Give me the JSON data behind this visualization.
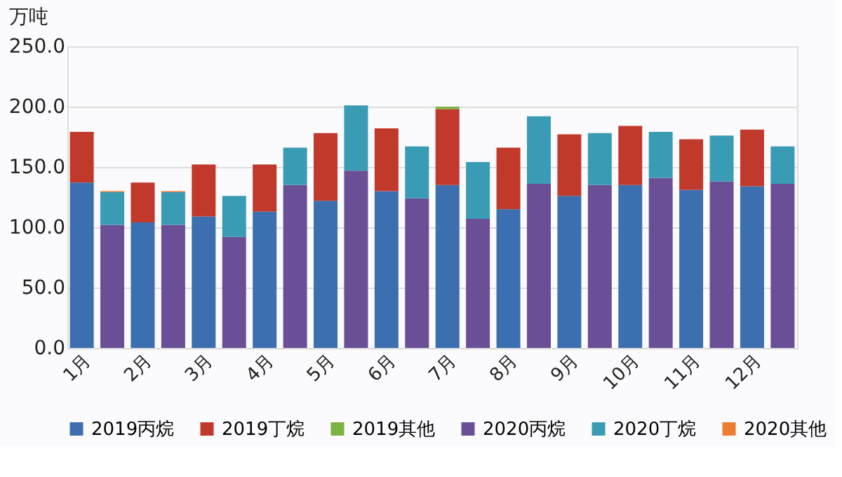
{
  "chart_data": {
    "type": "bar",
    "stacked": true,
    "ylabel": "万吨",
    "categories": [
      "1月",
      null,
      "2月",
      null,
      "3月",
      null,
      "4月",
      null,
      "5月",
      null,
      "6月",
      null,
      "7月",
      null,
      "8月",
      null,
      "9月",
      null,
      "10月",
      null,
      "11月",
      null,
      "12月",
      null
    ],
    "ylim": [
      0,
      250
    ],
    "yticks": [
      {
        "value": 0,
        "label": "0.0"
      },
      {
        "value": 50,
        "label": "50.0"
      },
      {
        "value": 100,
        "label": "100.0"
      },
      {
        "value": 150,
        "label": "150.0"
      },
      {
        "value": 200,
        "label": "200.0"
      },
      {
        "value": 250,
        "label": "250.0"
      }
    ],
    "grid": "y",
    "legend": "bottom",
    "series": [
      {
        "name": "2019丙烷",
        "color": "#3b6fb0",
        "values": [
          137,
          null,
          104,
          null,
          109,
          null,
          113,
          null,
          122,
          null,
          130,
          null,
          135,
          null,
          115,
          null,
          126,
          null,
          135,
          null,
          131,
          null,
          134,
          null
        ]
      },
      {
        "name": "2019丁烷",
        "color": "#c0392b",
        "values": [
          42,
          null,
          33,
          null,
          43,
          null,
          39,
          null,
          56,
          null,
          52,
          null,
          63,
          null,
          51,
          null,
          51,
          null,
          49,
          null,
          42,
          null,
          47,
          null
        ]
      },
      {
        "name": "2019其他",
        "color": "#7cb342",
        "values": [
          null,
          null,
          null,
          null,
          null,
          null,
          null,
          null,
          null,
          null,
          null,
          null,
          2,
          null,
          null,
          null,
          null,
          null,
          null,
          null,
          null,
          null,
          null,
          null
        ]
      },
      {
        "name": "2020丙烷",
        "color": "#6a4f96",
        "values": [
          null,
          102,
          null,
          102,
          null,
          92,
          null,
          135,
          null,
          147,
          null,
          124,
          null,
          107,
          null,
          136,
          null,
          135,
          null,
          141,
          null,
          138,
          null,
          136
        ]
      },
      {
        "name": "2020丁烷",
        "color": "#3a9bb5",
        "values": [
          null,
          27,
          null,
          27,
          null,
          34,
          null,
          31,
          null,
          54,
          null,
          43,
          null,
          47,
          null,
          56,
          null,
          43,
          null,
          38,
          null,
          38,
          null,
          31
        ]
      },
      {
        "name": "2020其他",
        "color": "#ed7d31",
        "values": [
          null,
          1,
          null,
          1,
          null,
          null,
          null,
          null,
          null,
          null,
          null,
          null,
          null,
          null,
          null,
          null,
          null,
          null,
          null,
          null,
          null,
          null,
          null,
          null
        ]
      }
    ]
  }
}
